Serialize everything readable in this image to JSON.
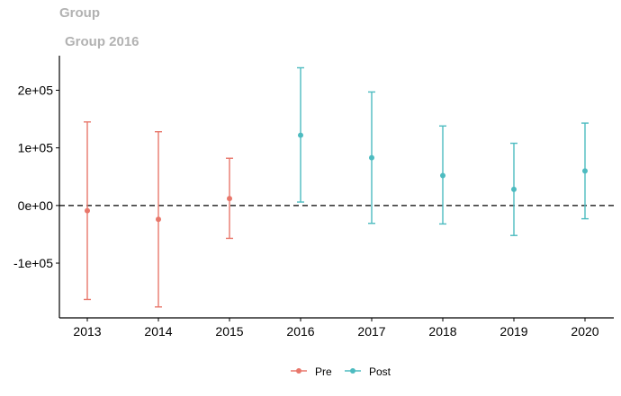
{
  "title": "Group",
  "subtitle": "Group 2016",
  "chart_data": {
    "type": "scatter",
    "subtype": "errorbar",
    "x": [
      2013,
      2014,
      2015,
      2016,
      2017,
      2018,
      2019,
      2020
    ],
    "ylim": [
      -195000,
      260000
    ],
    "yticks": [
      -100000,
      0,
      100000,
      200000
    ],
    "ytick_labels": [
      "-1e+05",
      "0e+00",
      "1e+05",
      "2e+05"
    ],
    "reference_line": 0,
    "grid": false,
    "legend_position": "bottom",
    "series": [
      {
        "name": "Pre",
        "color": "#E8776B",
        "x": [
          2013,
          2014,
          2015
        ],
        "y": [
          -9000,
          -24000,
          12000
        ],
        "lower": [
          -163000,
          -176000,
          -57000
        ],
        "upper": [
          145000,
          128000,
          82000
        ]
      },
      {
        "name": "Post",
        "color": "#4DBBC0",
        "x": [
          2016,
          2017,
          2018,
          2019,
          2020
        ],
        "y": [
          122000,
          83000,
          52000,
          28000,
          60000
        ],
        "lower": [
          6000,
          -31000,
          -32000,
          -52000,
          -23000
        ],
        "upper": [
          239000,
          197000,
          138000,
          108000,
          143000
        ]
      }
    ]
  }
}
